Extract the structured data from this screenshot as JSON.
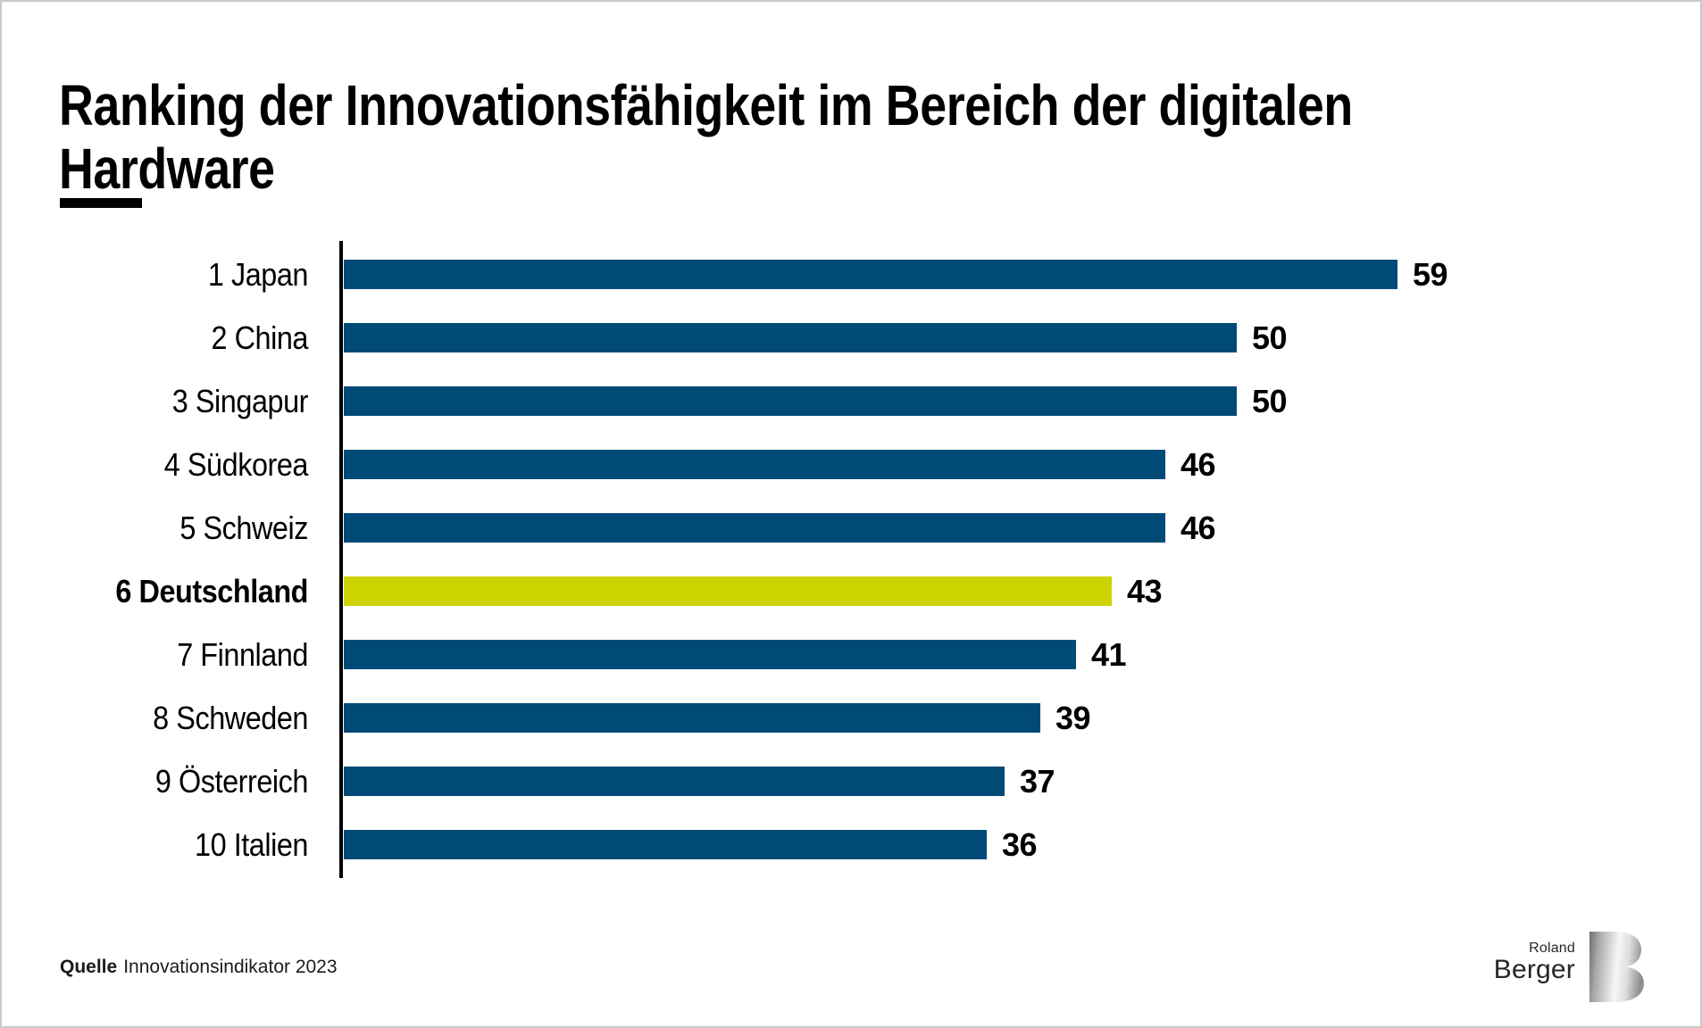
{
  "page": {
    "background": "#ffffff",
    "border_color": "#c9c9c9"
  },
  "header": {
    "title_lines": [
      "Ranking der Innovationsfähigkeit im Bereich der digitalen",
      "Hardware"
    ]
  },
  "chart_data": {
    "type": "bar",
    "orientation": "horizontal",
    "title": "Ranking der Innovationsfähigkeit im Bereich der digitalen Hardware",
    "categories": [
      "1 Japan",
      "2 China",
      "3 Singapur",
      "4 Südkorea",
      "5 Schweiz",
      "6 Deutschland",
      "7 Finnland",
      "8 Schweden",
      "9 Österreich",
      "10 Italien"
    ],
    "values": [
      59,
      50,
      50,
      46,
      46,
      43,
      41,
      39,
      37,
      36
    ],
    "highlight_index": 5,
    "highlight_category": "6 Deutschland",
    "bar_color": "#004a77",
    "highlight_color": "#cdd300",
    "axis_color": "#000000",
    "xlim": [
      0,
      60
    ],
    "value_labels_shown": true,
    "gridlines": false,
    "legend": "none"
  },
  "footer": {
    "source_label": "Quelle",
    "source_text": "Innovationsindikator 2023"
  },
  "logo": {
    "name_top": "Roland",
    "name_bottom": "Berger",
    "monogram": "B"
  }
}
